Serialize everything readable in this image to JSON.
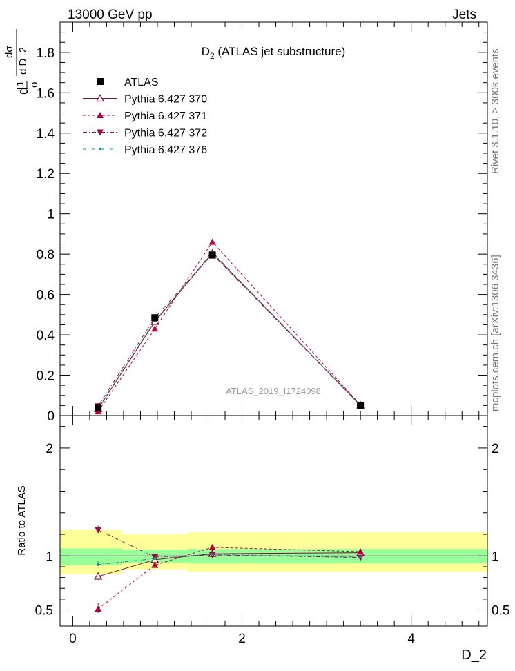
{
  "header": {
    "left": "13000 GeV pp",
    "right": "Jets",
    "side_top": "Rivet 3.1.10, ≥ 300k events",
    "side_bottom": "mcplots.cern.ch [arXiv:1306.3436]"
  },
  "chart_data": [
    {
      "type": "scatter",
      "title_main": "D",
      "title_sub": "2",
      "title_rest": " (ATLAS jet substructure)",
      "ylabel": "1/σ dσ/dD_2",
      "ylabel_parts": {
        "d_one": "d",
        "one": "1",
        "sigma": "σ",
        "d_sigma": "dσ",
        "d_var": "d D_2"
      },
      "watermark": "ATLAS_2019_I1724098",
      "xlim": [
        -0.15,
        4.9
      ],
      "ylim": [
        0,
        1.95
      ],
      "yticks": [
        0,
        0.2,
        0.4,
        0.6,
        0.8,
        1,
        1.2,
        1.4,
        1.6,
        1.8
      ],
      "ytick_labels": [
        "0",
        "0.2",
        "0.4",
        "0.6",
        "0.8",
        "1",
        "1.2",
        "1.4",
        "1.6",
        "1.8"
      ],
      "legend_position": "top-left",
      "x": [
        0.3,
        0.97,
        1.65,
        3.4
      ],
      "series": [
        {
          "name": "ATLAS",
          "values": [
            0.04,
            0.485,
            0.795,
            0.05
          ],
          "color": "#000000",
          "marker": "square",
          "line": "none"
        },
        {
          "name": "Pythia 6.427 370",
          "values": [
            0.033,
            0.465,
            0.805,
            0.052
          ],
          "color": "#7a0f2e",
          "marker": "triangle-open",
          "line": "solid"
        },
        {
          "name": "Pythia 6.427 371",
          "values": [
            0.02,
            0.43,
            0.86,
            0.053
          ],
          "color": "#b0003a",
          "marker": "triangle-up",
          "line": "dashed"
        },
        {
          "name": "Pythia 6.427 372",
          "values": [
            0.047,
            0.485,
            0.8,
            0.05
          ],
          "color": "#9a0b4a",
          "marker": "triangle-down",
          "line": "dashdot"
        },
        {
          "name": "Pythia 6.427 376",
          "values": [
            0.037,
            0.47,
            0.81,
            0.049
          ],
          "color": "#1a8f80",
          "marker": "dot",
          "line": "dashdotdot"
        }
      ]
    },
    {
      "type": "scatter",
      "ylabel": "Ratio to ATLAS",
      "xlabel": "D_2",
      "xlim": [
        -0.15,
        4.9
      ],
      "ylim": [
        0.35,
        2.3
      ],
      "xticks": [
        0,
        2,
        4
      ],
      "xtick_labels": [
        "0",
        "2",
        "4"
      ],
      "yticks": [
        0.5,
        1,
        2
      ],
      "ytick_labels": [
        "0.5",
        "1",
        "2"
      ],
      "bands": [
        {
          "x0": -0.15,
          "x1": 0.58,
          "yellow": [
            0.83,
            1.24
          ],
          "green": [
            0.915,
            1.07
          ]
        },
        {
          "x0": 0.58,
          "x1": 1.35,
          "yellow": [
            0.875,
            1.2
          ],
          "green": [
            0.935,
            1.06
          ]
        },
        {
          "x0": 1.35,
          "x1": 4.9,
          "yellow": [
            0.855,
            1.22
          ],
          "green": [
            0.93,
            1.065
          ]
        }
      ],
      "x": [
        0.3,
        0.97,
        1.65,
        3.4
      ],
      "series": [
        {
          "name": "Pythia 6.427 370",
          "values": [
            0.81,
            0.965,
            1.02,
            1.03
          ],
          "err": [
            0.04,
            0.01,
            0.01,
            0.01
          ]
        },
        {
          "name": "Pythia 6.427 371",
          "values": [
            0.51,
            0.915,
            1.08,
            1.04
          ],
          "err": [
            0.05,
            0.01,
            0.01,
            0.01
          ]
        },
        {
          "name": "Pythia 6.427 372",
          "values": [
            1.24,
            0.99,
            1.01,
            0.985
          ],
          "err": [
            0.04,
            0.01,
            0.01,
            0.01
          ]
        },
        {
          "name": "Pythia 6.427 376",
          "values": [
            0.92,
            0.975,
            1.015,
            0.99
          ],
          "err": [
            0.03,
            0.01,
            0.01,
            0.01
          ]
        }
      ]
    }
  ]
}
